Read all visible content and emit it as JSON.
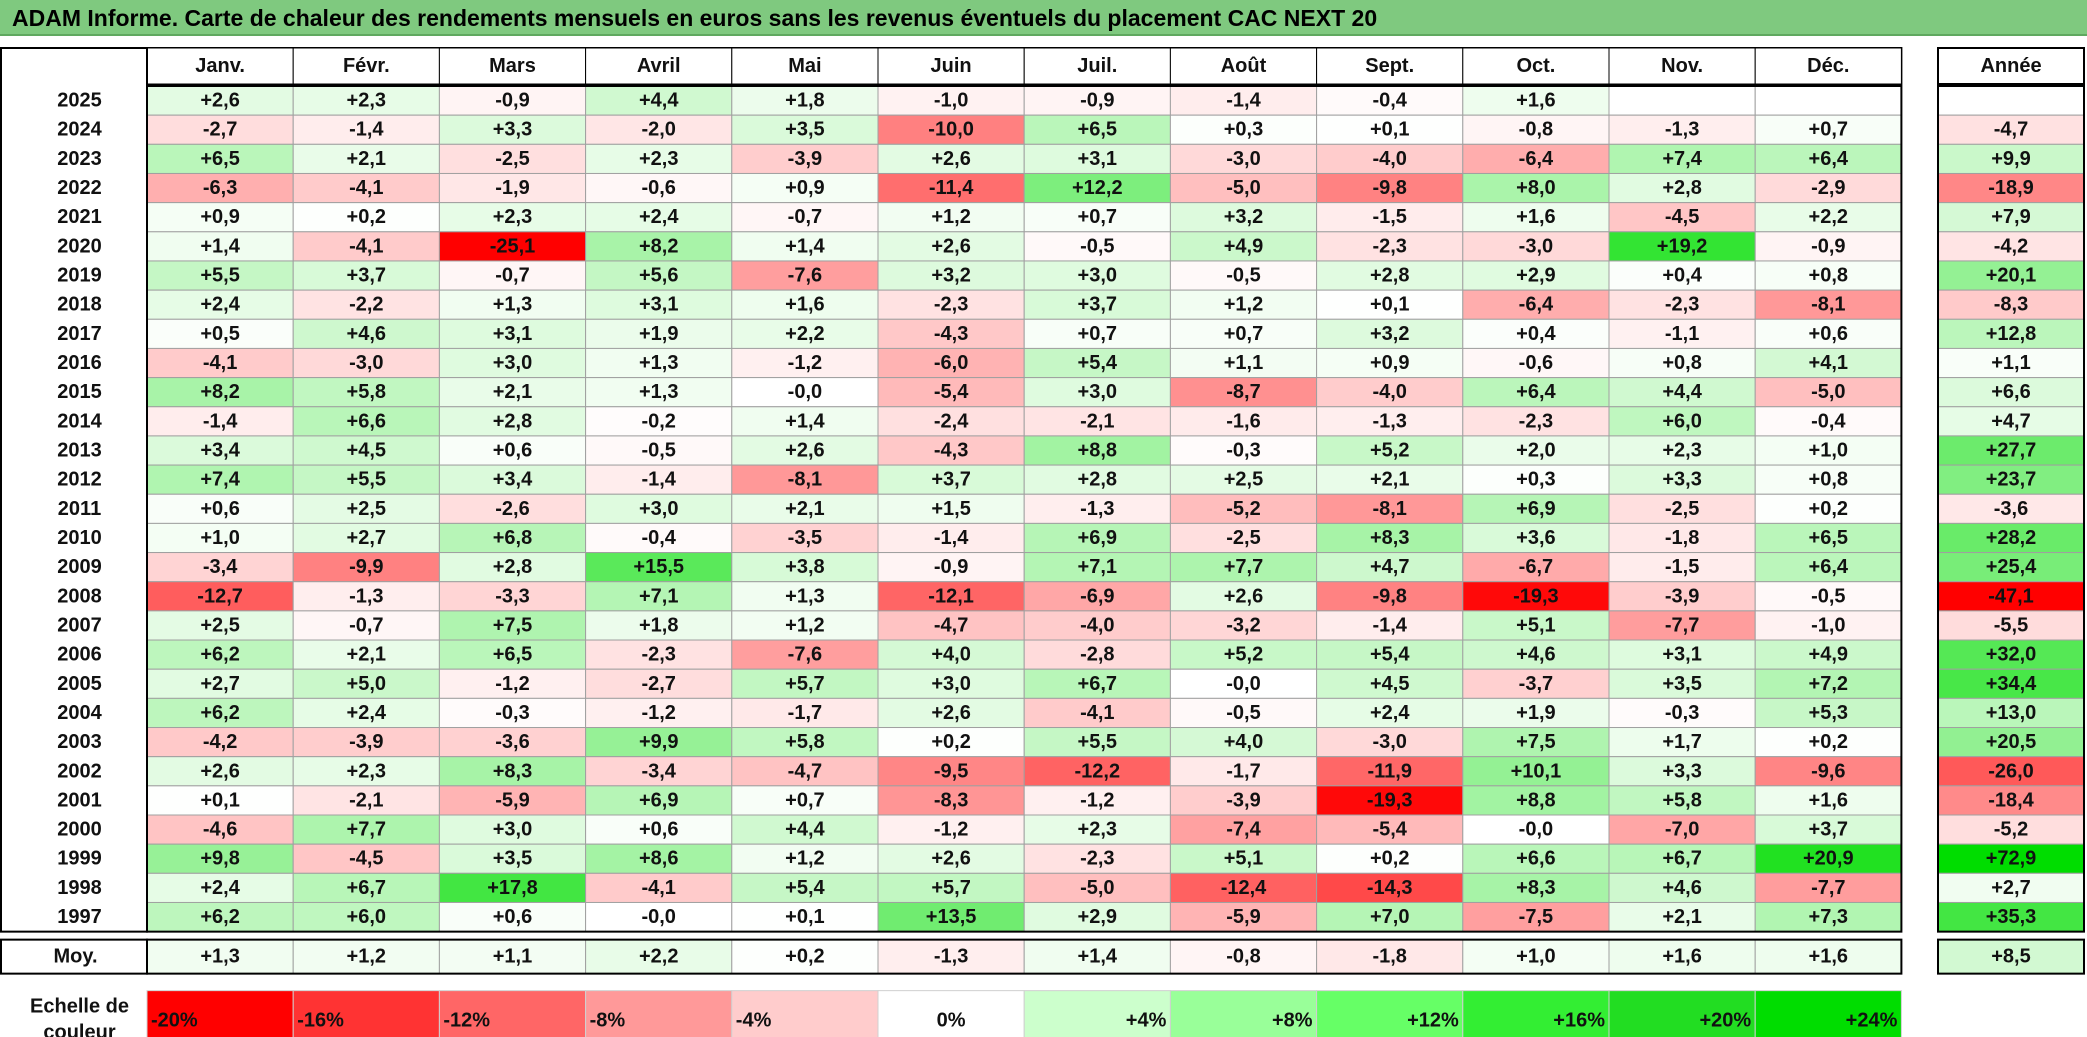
{
  "chart_data": {
    "type": "heatmap",
    "title": "ADAM Informe. Carte de chaleur des rendements mensuels en euros sans les revenus éventuels du placement CAC NEXT 20",
    "columns": [
      "Janv.",
      "Févr.",
      "Mars",
      "Avril",
      "Mai",
      "Juin",
      "Juil.",
      "Août",
      "Sept.",
      "Oct.",
      "Nov.",
      "Déc."
    ],
    "year_column_label": "Année",
    "average_row_label": "Moy.",
    "rows": [
      {
        "year": "2025",
        "values": [
          "+2,6",
          "+2,3",
          "-0,9",
          "+4,4",
          "+1,8",
          "-1,0",
          "-0,9",
          "-1,4",
          "-0,4",
          "+1,6",
          "",
          ""
        ],
        "annual": ""
      },
      {
        "year": "2024",
        "values": [
          "-2,7",
          "-1,4",
          "+3,3",
          "-2,0",
          "+3,5",
          "-10,0",
          "+6,5",
          "+0,3",
          "+0,1",
          "-0,8",
          "-1,3",
          "+0,7"
        ],
        "annual": "-4,7"
      },
      {
        "year": "2023",
        "values": [
          "+6,5",
          "+2,1",
          "-2,5",
          "+2,3",
          "-3,9",
          "+2,6",
          "+3,1",
          "-3,0",
          "-4,0",
          "-6,4",
          "+7,4",
          "+6,4"
        ],
        "annual": "+9,9"
      },
      {
        "year": "2022",
        "values": [
          "-6,3",
          "-4,1",
          "-1,9",
          "-0,6",
          "+0,9",
          "-11,4",
          "+12,2",
          "-5,0",
          "-9,8",
          "+8,0",
          "+2,8",
          "-2,9"
        ],
        "annual": "-18,9"
      },
      {
        "year": "2021",
        "values": [
          "+0,9",
          "+0,2",
          "+2,3",
          "+2,4",
          "-0,7",
          "+1,2",
          "+0,7",
          "+3,2",
          "-1,5",
          "+1,6",
          "-4,5",
          "+2,2"
        ],
        "annual": "+7,9"
      },
      {
        "year": "2020",
        "values": [
          "+1,4",
          "-4,1",
          "-25,1",
          "+8,2",
          "+1,4",
          "+2,6",
          "-0,5",
          "+4,9",
          "-2,3",
          "-3,0",
          "+19,2",
          "-0,9"
        ],
        "annual": "-4,2"
      },
      {
        "year": "2019",
        "values": [
          "+5,5",
          "+3,7",
          "-0,7",
          "+5,6",
          "-7,6",
          "+3,2",
          "+3,0",
          "-0,5",
          "+2,8",
          "+2,9",
          "+0,4",
          "+0,8"
        ],
        "annual": "+20,1"
      },
      {
        "year": "2018",
        "values": [
          "+2,4",
          "-2,2",
          "+1,3",
          "+3,1",
          "+1,6",
          "-2,3",
          "+3,7",
          "+1,2",
          "+0,1",
          "-6,4",
          "-2,3",
          "-8,1"
        ],
        "annual": "-8,3"
      },
      {
        "year": "2017",
        "values": [
          "+0,5",
          "+4,6",
          "+3,1",
          "+1,9",
          "+2,2",
          "-4,3",
          "+0,7",
          "+0,7",
          "+3,2",
          "+0,4",
          "-1,1",
          "+0,6"
        ],
        "annual": "+12,8"
      },
      {
        "year": "2016",
        "values": [
          "-4,1",
          "-3,0",
          "+3,0",
          "+1,3",
          "-1,2",
          "-6,0",
          "+5,4",
          "+1,1",
          "+0,9",
          "-0,6",
          "+0,8",
          "+4,1"
        ],
        "annual": "+1,1"
      },
      {
        "year": "2015",
        "values": [
          "+8,2",
          "+5,8",
          "+2,1",
          "+1,3",
          "-0,0",
          "-5,4",
          "+3,0",
          "-8,7",
          "-4,0",
          "+6,4",
          "+4,4",
          "-5,0"
        ],
        "annual": "+6,6"
      },
      {
        "year": "2014",
        "values": [
          "-1,4",
          "+6,6",
          "+2,8",
          "-0,2",
          "+1,4",
          "-2,4",
          "-2,1",
          "-1,6",
          "-1,3",
          "-2,3",
          "+6,0",
          "-0,4"
        ],
        "annual": "+4,7"
      },
      {
        "year": "2013",
        "values": [
          "+3,4",
          "+4,5",
          "+0,6",
          "-0,5",
          "+2,6",
          "-4,3",
          "+8,8",
          "-0,3",
          "+5,2",
          "+2,0",
          "+2,3",
          "+1,0"
        ],
        "annual": "+27,7"
      },
      {
        "year": "2012",
        "values": [
          "+7,4",
          "+5,5",
          "+3,4",
          "-1,4",
          "-8,1",
          "+3,7",
          "+2,8",
          "+2,5",
          "+2,1",
          "+0,3",
          "+3,3",
          "+0,8"
        ],
        "annual": "+23,7"
      },
      {
        "year": "2011",
        "values": [
          "+0,6",
          "+2,5",
          "-2,6",
          "+3,0",
          "+2,1",
          "+1,5",
          "-1,3",
          "-5,2",
          "-8,1",
          "+6,9",
          "-2,5",
          "+0,2"
        ],
        "annual": "-3,6"
      },
      {
        "year": "2010",
        "values": [
          "+1,0",
          "+2,7",
          "+6,8",
          "-0,4",
          "-3,5",
          "-1,4",
          "+6,9",
          "-2,5",
          "+8,3",
          "+3,6",
          "-1,8",
          "+6,5"
        ],
        "annual": "+28,2"
      },
      {
        "year": "2009",
        "values": [
          "-3,4",
          "-9,9",
          "+2,8",
          "+15,5",
          "+3,8",
          "-0,9",
          "+7,1",
          "+7,7",
          "+4,7",
          "-6,7",
          "-1,5",
          "+6,4"
        ],
        "annual": "+25,4"
      },
      {
        "year": "2008",
        "values": [
          "-12,7",
          "-1,3",
          "-3,3",
          "+7,1",
          "+1,3",
          "-12,1",
          "-6,9",
          "+2,6",
          "-9,8",
          "-19,3",
          "-3,9",
          "-0,5"
        ],
        "annual": "-47,1"
      },
      {
        "year": "2007",
        "values": [
          "+2,5",
          "-0,7",
          "+7,5",
          "+1,8",
          "+1,2",
          "-4,7",
          "-4,0",
          "-3,2",
          "-1,4",
          "+5,1",
          "-7,7",
          "-1,0"
        ],
        "annual": "-5,5"
      },
      {
        "year": "2006",
        "values": [
          "+6,2",
          "+2,1",
          "+6,5",
          "-2,3",
          "-7,6",
          "+4,0",
          "-2,8",
          "+5,2",
          "+5,4",
          "+4,6",
          "+3,1",
          "+4,9"
        ],
        "annual": "+32,0"
      },
      {
        "year": "2005",
        "values": [
          "+2,7",
          "+5,0",
          "-1,2",
          "-2,7",
          "+5,7",
          "+3,0",
          "+6,7",
          "-0,0",
          "+4,5",
          "-3,7",
          "+3,5",
          "+7,2"
        ],
        "annual": "+34,4"
      },
      {
        "year": "2004",
        "values": [
          "+6,2",
          "+2,4",
          "-0,3",
          "-1,2",
          "-1,7",
          "+2,6",
          "-4,1",
          "-0,5",
          "+2,4",
          "+1,9",
          "-0,3",
          "+5,3"
        ],
        "annual": "+13,0"
      },
      {
        "year": "2003",
        "values": [
          "-4,2",
          "-3,9",
          "-3,6",
          "+9,9",
          "+5,8",
          "+0,2",
          "+5,5",
          "+4,0",
          "-3,0",
          "+7,5",
          "+1,7",
          "+0,2"
        ],
        "annual": "+20,5"
      },
      {
        "year": "2002",
        "values": [
          "+2,6",
          "+2,3",
          "+8,3",
          "-3,4",
          "-4,7",
          "-9,5",
          "-12,2",
          "-1,7",
          "-11,9",
          "+10,1",
          "+3,3",
          "-9,6"
        ],
        "annual": "-26,0"
      },
      {
        "year": "2001",
        "values": [
          "+0,1",
          "-2,1",
          "-5,9",
          "+6,9",
          "+0,7",
          "-8,3",
          "-1,2",
          "-3,9",
          "-19,3",
          "+8,8",
          "+5,8",
          "+1,6"
        ],
        "annual": "-18,4"
      },
      {
        "year": "2000",
        "values": [
          "-4,6",
          "+7,7",
          "+3,0",
          "+0,6",
          "+4,4",
          "-1,2",
          "+2,3",
          "-7,4",
          "-5,4",
          "-0,0",
          "-7,0",
          "+3,7"
        ],
        "annual": "-5,2"
      },
      {
        "year": "1999",
        "values": [
          "+9,8",
          "-4,5",
          "+3,5",
          "+8,6",
          "+1,2",
          "+2,6",
          "-2,3",
          "+5,1",
          "+0,2",
          "+6,6",
          "+6,7",
          "+20,9"
        ],
        "annual": "+72,9"
      },
      {
        "year": "1998",
        "values": [
          "+2,4",
          "+6,7",
          "+17,8",
          "-4,1",
          "+5,4",
          "+5,7",
          "-5,0",
          "-12,4",
          "-14,3",
          "+8,3",
          "+4,6",
          "-7,7"
        ],
        "annual": "+2,7"
      },
      {
        "year": "1997",
        "values": [
          "+6,2",
          "+6,0",
          "+0,6",
          "-0,0",
          "+0,1",
          "+13,5",
          "+2,9",
          "-5,9",
          "+7,0",
          "-7,5",
          "+2,1",
          "+7,3"
        ],
        "annual": "+35,3"
      }
    ],
    "average": {
      "values": [
        "+1,3",
        "+1,2",
        "+1,1",
        "+2,2",
        "+0,2",
        "-1,3",
        "+1,4",
        "-0,8",
        "-1,8",
        "+1,0",
        "+1,6",
        "+1,6"
      ],
      "annual": "+8,5"
    },
    "color_scale": {
      "label_line1": "Echelle de",
      "label_line2": "couleur",
      "stops": [
        {
          "label": "-20%",
          "value": -20,
          "color": "#ff0000"
        },
        {
          "label": "-16%",
          "value": -16,
          "color": "#ff3333"
        },
        {
          "label": "-12%",
          "value": -12,
          "color": "#ff6666"
        },
        {
          "label": "-8%",
          "value": -8,
          "color": "#ff9999"
        },
        {
          "label": "-4%",
          "value": -4,
          "color": "#ffcccc"
        },
        {
          "label": "0%",
          "value": 0,
          "color": "#ffffff"
        },
        {
          "label": "+4%",
          "value": 4,
          "color": "#ccffcc"
        },
        {
          "label": "+8%",
          "value": 8,
          "color": "#99ff99"
        },
        {
          "label": "+12%",
          "value": 12,
          "color": "#66ff66"
        },
        {
          "label": "+16%",
          "value": 16,
          "color": "#33ee33"
        },
        {
          "label": "+20%",
          "value": 20,
          "color": "#22dd22"
        },
        {
          "label": "+24%",
          "value": 24,
          "color": "#00dd00"
        }
      ]
    }
  }
}
